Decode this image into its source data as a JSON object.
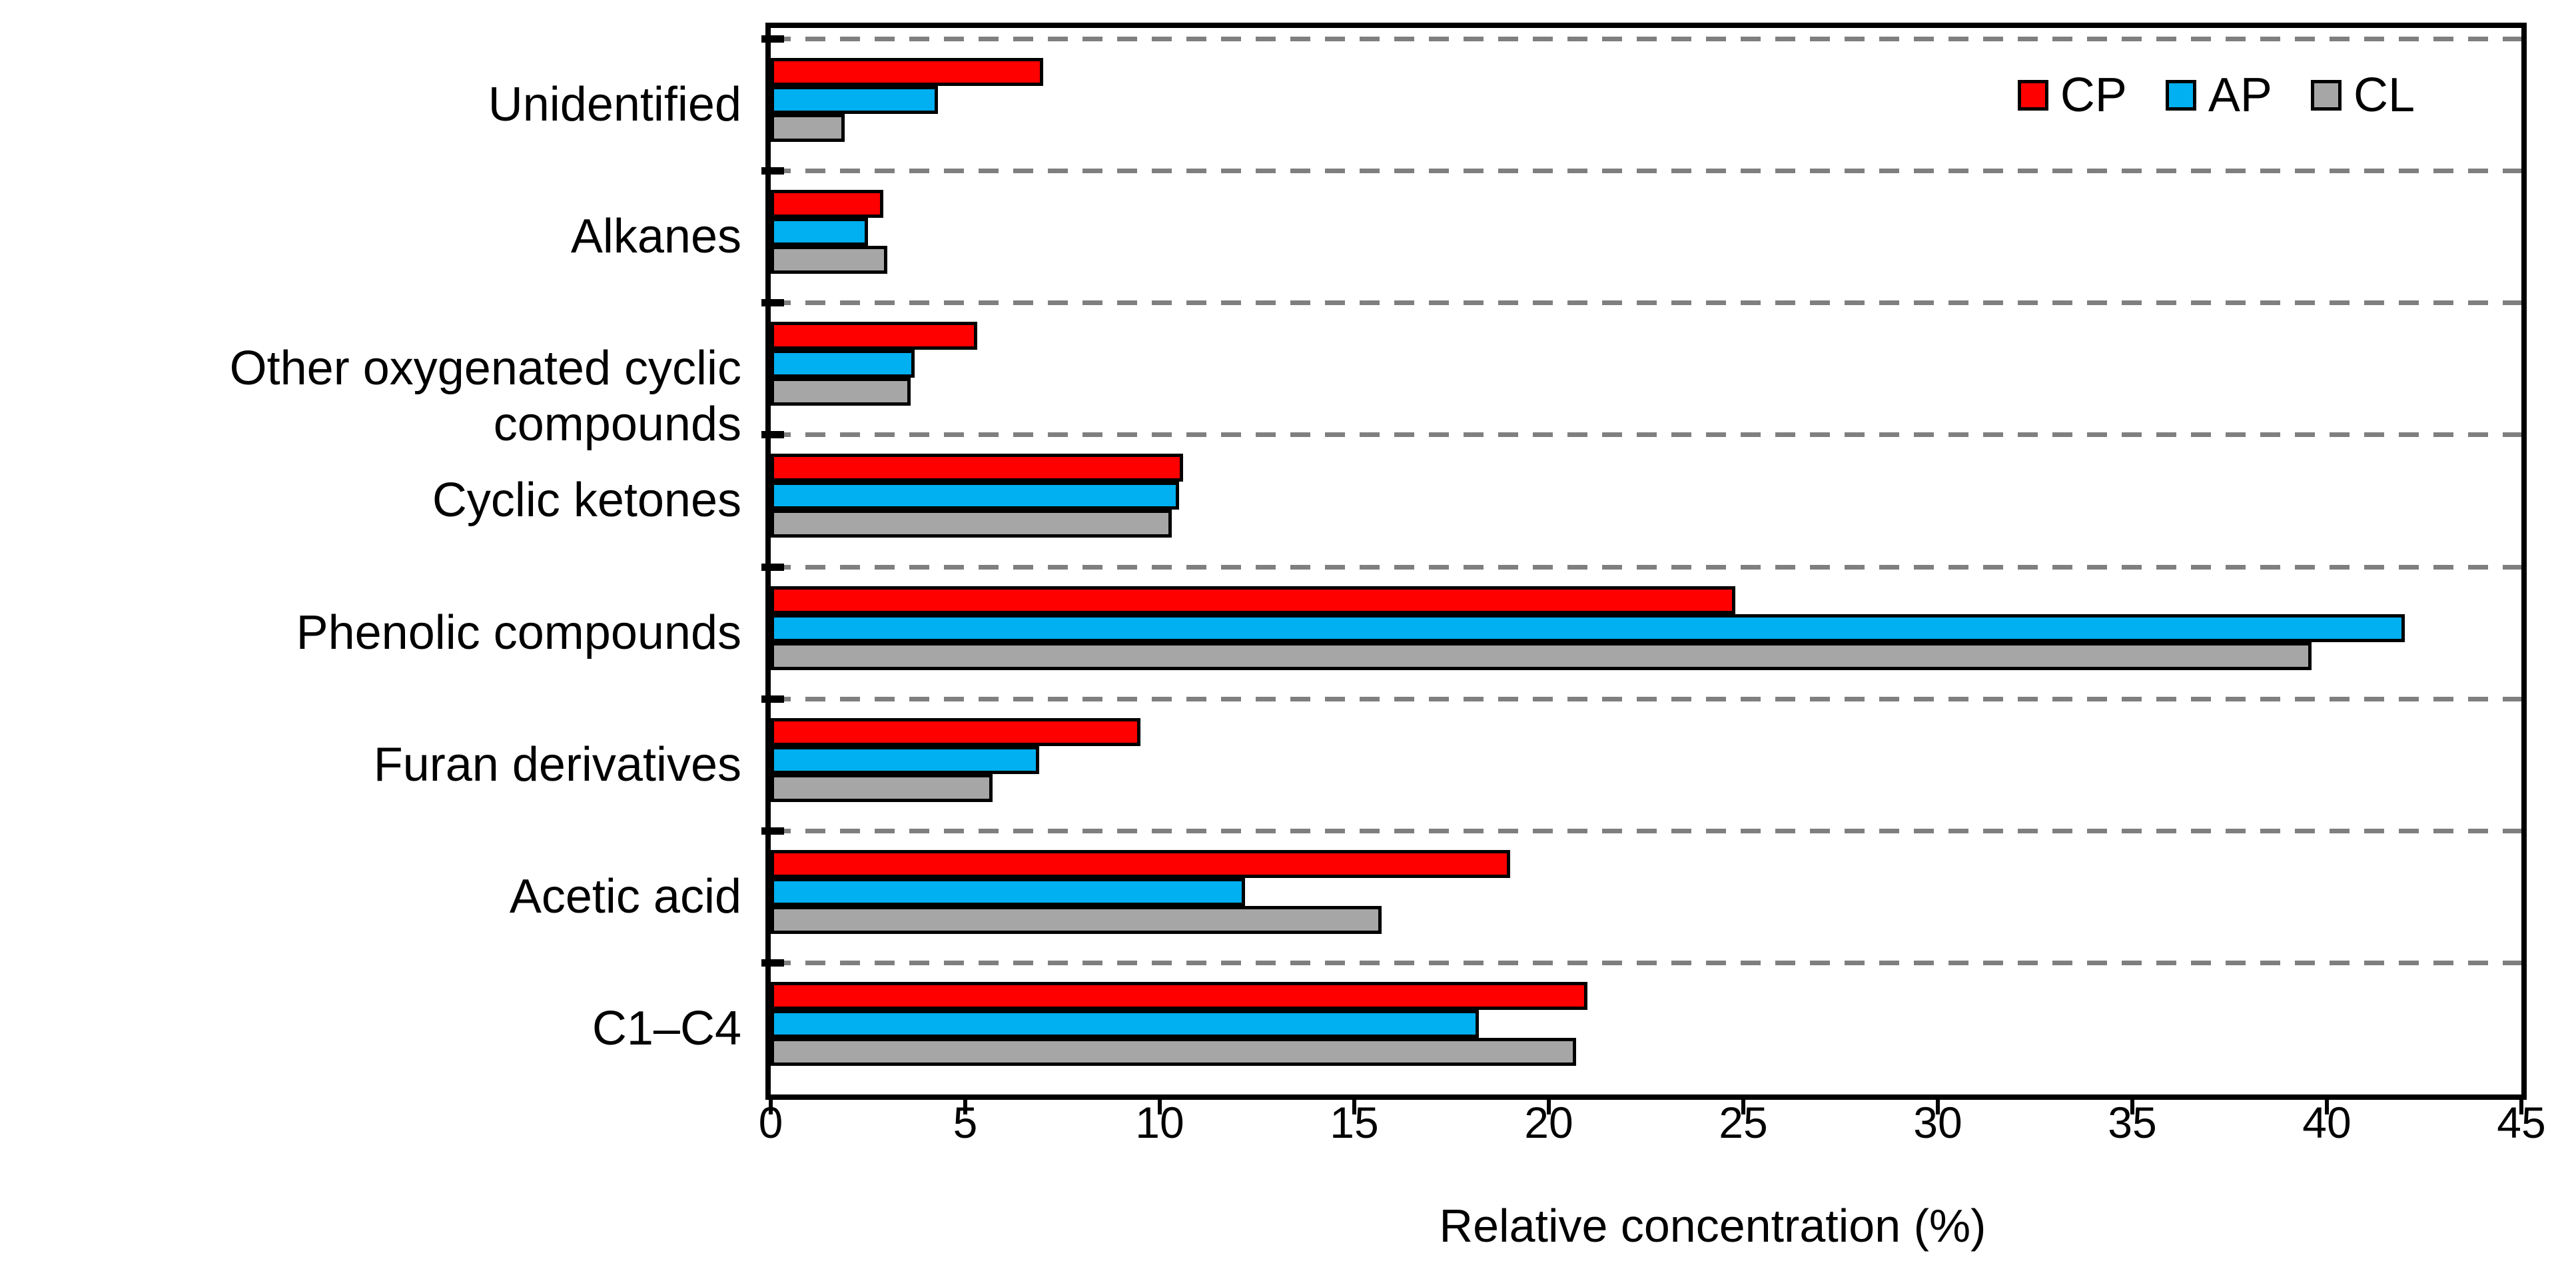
{
  "chart_data": {
    "type": "bar",
    "orientation": "horizontal",
    "title": "",
    "xlabel": "Relative concentration (%)",
    "ylabel": "",
    "xlim": [
      0,
      45
    ],
    "xticks": [
      0,
      5,
      10,
      15,
      20,
      25,
      30,
      35,
      40,
      45
    ],
    "grid": "dashed gray horizontal separators between category groups",
    "legend_position": "top-right inside plot area",
    "categories": [
      "Unidentified",
      "Alkanes",
      "Other oxygenated cyclic compounds",
      "Cyclic ketones",
      "Phenolic compounds",
      "Furan derivatives",
      "Acetic acid",
      "C1–C4"
    ],
    "series": [
      {
        "name": "CP",
        "color": "#FF0000",
        "values": [
          7.0,
          2.9,
          5.3,
          10.6,
          24.8,
          9.5,
          19.0,
          21.0
        ]
      },
      {
        "name": "AP",
        "color": "#00B0F0",
        "values": [
          4.3,
          2.5,
          3.7,
          10.5,
          42.0,
          6.9,
          12.2,
          18.2
        ]
      },
      {
        "name": "CL",
        "color": "#A6A6A6",
        "values": [
          1.9,
          3.0,
          3.6,
          10.3,
          39.6,
          5.7,
          15.7,
          20.7
        ]
      }
    ]
  },
  "colors": {
    "background": "#FFFFFF",
    "bar_border": "#000000",
    "axis": "#000000",
    "separator": "#7F7F7F",
    "text": "#000000"
  }
}
